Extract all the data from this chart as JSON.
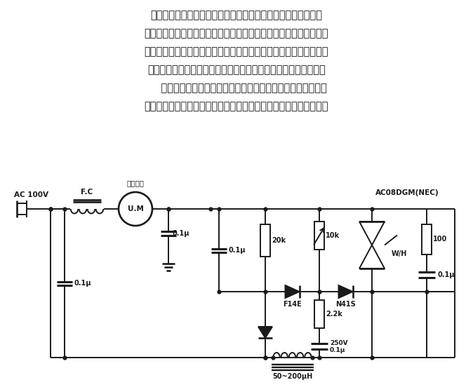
{
  "bg_color": "#ffffff",
  "line_color": "#1a1a1a",
  "text_color": "#1a1a1a",
  "para_lines": [
    "交、直流两用电机，即励磁线圈和转子线圈串联，它们流有同一",
    "电流，这种电机接直流电源时能工作，接交流电源时也能工作，其结",
    "构决定了电磁转矩的方向是一定的。一般用于电机转向固定的情况。",
    "若想改变电机转向，应给励磁线圈、转子线圈分别供电。电路如图",
    "    所示。电路使用元件少、简单便宜，但也存在因导通电压高而",
    "产生的控制特性滞后现象，为达到使用目的，设置了消除滞后电路。"
  ],
  "label_AC": "AC 100V",
  "label_FC": "F.C",
  "label_motor": "单极电机",
  "label_UM": "U.M",
  "label_C1": "0.1μ",
  "label_C2": "0.1μ",
  "label_C3": "0.1μ",
  "label_R1": "20k",
  "label_R2": "10k",
  "label_R3": "2.2k",
  "label_R4": "100",
  "label_D1": "F14E",
  "label_D2": "N41S",
  "label_L": "50~200μH",
  "label_C4_1": "250V",
  "label_C4_2": "0.1μ",
  "label_C5": "0.1μ",
  "label_WH": "W/H",
  "label_NEC": "AC08DGM(NEC)",
  "fig_w": 6.74,
  "fig_h": 5.52,
  "dpi": 100
}
